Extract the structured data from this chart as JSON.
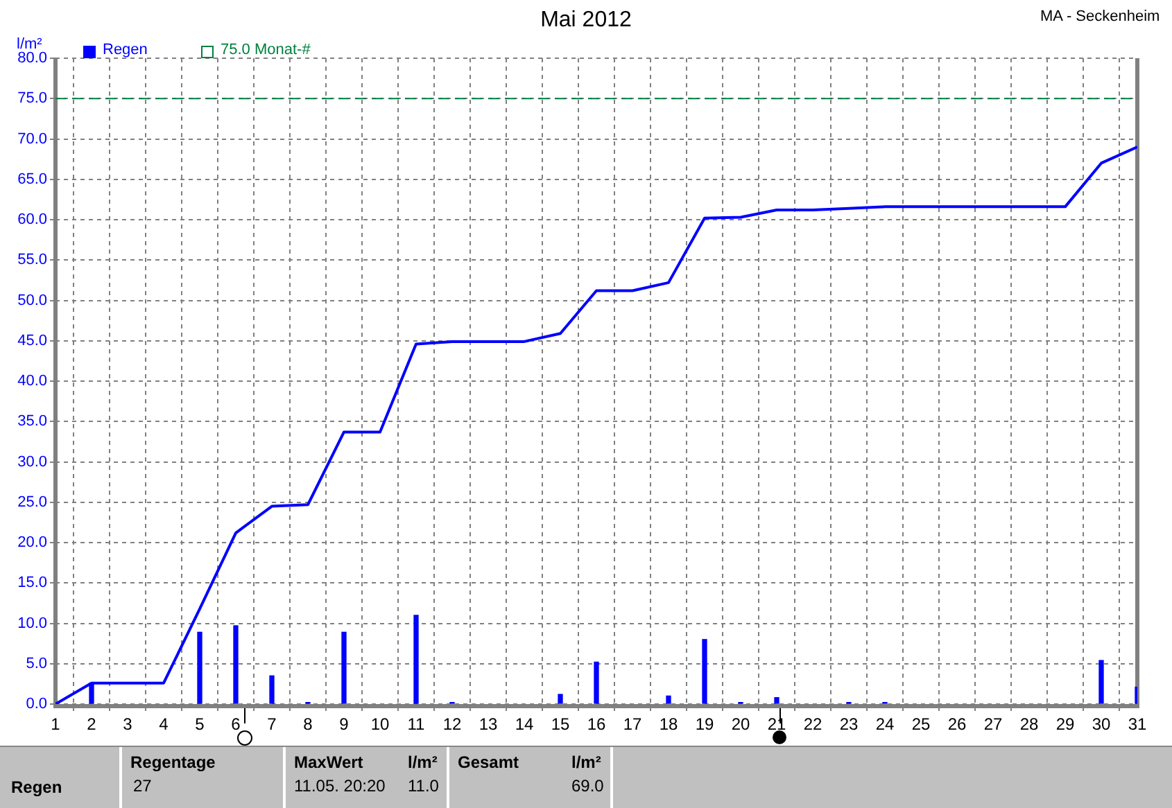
{
  "chart_data": {
    "type": "line",
    "title": "Mai 2012",
    "ylabel": "l/m²",
    "x": [
      1,
      2,
      3,
      4,
      5,
      6,
      7,
      8,
      9,
      10,
      11,
      12,
      13,
      14,
      15,
      16,
      17,
      18,
      19,
      20,
      21,
      22,
      23,
      24,
      25,
      26,
      27,
      28,
      29,
      30,
      31
    ],
    "series": [
      {
        "color": "#0000ff",
        "values": [
          0,
          2.6,
          2.6,
          2.6,
          11.8,
          21.2,
          24.5,
          24.7,
          33.7,
          33.7,
          44.6,
          44.9,
          44.9,
          44.9,
          45.9,
          51.2,
          51.2,
          52.2,
          60.2,
          60.3,
          61.2,
          61.2,
          61.4,
          61.6,
          61.6,
          61.6,
          61.6,
          61.6,
          61.6,
          67.0,
          69.0
        ]
      },
      {
        "type": "bar",
        "name": "Regen",
        "color": "#0000ff",
        "x": [
          2,
          5,
          6,
          7,
          8,
          9,
          11,
          12,
          15,
          16,
          18,
          19,
          20,
          21,
          23,
          24,
          30,
          31
        ],
        "values": [
          2.6,
          8.9,
          9.7,
          3.5,
          0.2,
          8.9,
          11.0,
          0.2,
          1.2,
          5.2,
          1.0,
          8.0,
          0.2,
          0.8,
          0.2,
          0.2,
          5.4,
          2.1
        ]
      }
    ],
    "xlim": [
      1,
      31
    ],
    "xticks": [
      1,
      2,
      3,
      4,
      5,
      6,
      7,
      8,
      9,
      10,
      11,
      12,
      13,
      14,
      15,
      16,
      17,
      18,
      19,
      20,
      21,
      22,
      23,
      24,
      25,
      26,
      27,
      28,
      29,
      30,
      31
    ],
    "ylim": [
      0,
      80
    ],
    "yticks": [
      {
        "value": 0,
        "label": "0.0"
      },
      {
        "value": 5,
        "label": "5.0"
      },
      {
        "value": 10,
        "label": "10.0"
      },
      {
        "value": 15,
        "label": "15.0"
      },
      {
        "value": 20,
        "label": "20.0"
      },
      {
        "value": 25,
        "label": "25.0"
      },
      {
        "value": 30,
        "label": "30.0"
      },
      {
        "value": 35,
        "label": "35.0"
      },
      {
        "value": 40,
        "label": "40.0"
      },
      {
        "value": 45,
        "label": "45.0"
      },
      {
        "value": 50,
        "label": "50.0"
      },
      {
        "value": 55,
        "label": "55.0"
      },
      {
        "value": 60,
        "label": "60.0"
      },
      {
        "value": 65,
        "label": "65.0"
      },
      {
        "value": 70,
        "label": "70.0"
      },
      {
        "value": 75,
        "label": "75.0"
      },
      {
        "value": 80,
        "label": "80.0"
      }
    ],
    "ref_lines": [
      {
        "axis": "y",
        "value": 75,
        "label": "75.0 Monat-#",
        "color": "#008040",
        "line_style": "dashed"
      }
    ],
    "grid": true,
    "legend": "top left",
    "marker": "none",
    "line_style": "solid",
    "annotations": [
      "MA - Seckenheim",
      "Regen",
      "Regentage",
      "27",
      "MaxWert",
      "l/m²",
      "11.05.  20:20",
      "11.0",
      "Gesamt",
      "l/m²",
      "69.0"
    ]
  }
}
